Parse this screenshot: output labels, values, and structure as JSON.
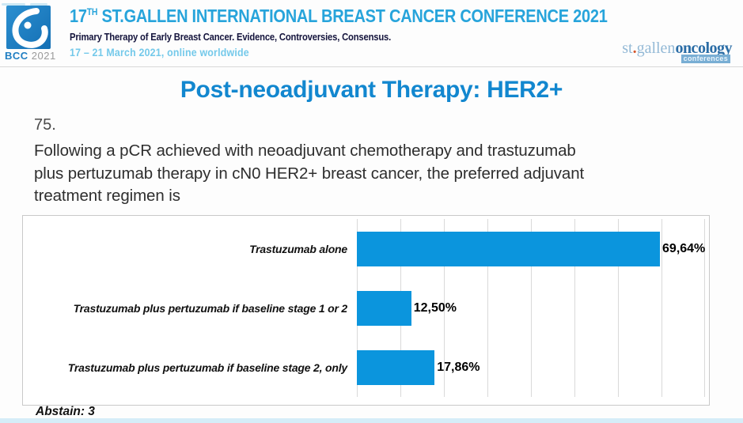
{
  "header": {
    "logo_bcc": "BCC",
    "logo_year": "2021",
    "title_num": "17",
    "title_sup": "TH",
    "title_rest": " ST.GALLEN INTERNATIONAL BREAST CANCER CONFERENCE 2021",
    "subtitle": "Primary Therapy of Early Breast Cancer. Evidence, Controversies, Consensus.",
    "dates": "17 – 21 March 2021, online worldwide",
    "brand": {
      "st": "st",
      "dot": ".",
      "gallen": "gallen",
      "oncology": "oncology",
      "conferences": "conferences"
    }
  },
  "slide": {
    "title": "Post-neoadjuvant Therapy: HER2+",
    "question_number": "75.",
    "question_lines": [
      "Following a pCR achieved with neoadjuvant chemotherapy and trastuzumab",
      "plus pertuzumab therapy in cN0 HER2+ breast cancer, the preferred adjuvant",
      "treatment regimen is"
    ],
    "abstain": "Abstain: 3"
  },
  "chart_data": {
    "type": "bar",
    "orientation": "horizontal",
    "categories": [
      "Trastuzumab alone",
      "Trastuzumab plus pertuzumab if baseline stage 1 or 2",
      "Trastuzumab plus pertuzumab if baseline stage 2, only"
    ],
    "values": [
      69.64,
      12.5,
      17.86
    ],
    "value_labels": [
      "69,64%",
      "12,50%",
      "17,86%"
    ],
    "xlim": [
      0,
      80
    ],
    "gridline_step": 10,
    "grid": true,
    "legend": false,
    "title": "",
    "xlabel": "",
    "ylabel": ""
  },
  "colors": {
    "bar": "#0b95dd",
    "grid": "#d9d9d9",
    "title": "#1287cf",
    "header_title": "#27a4db",
    "header_sub": "#15153d",
    "header_dates": "#74c9ea"
  }
}
